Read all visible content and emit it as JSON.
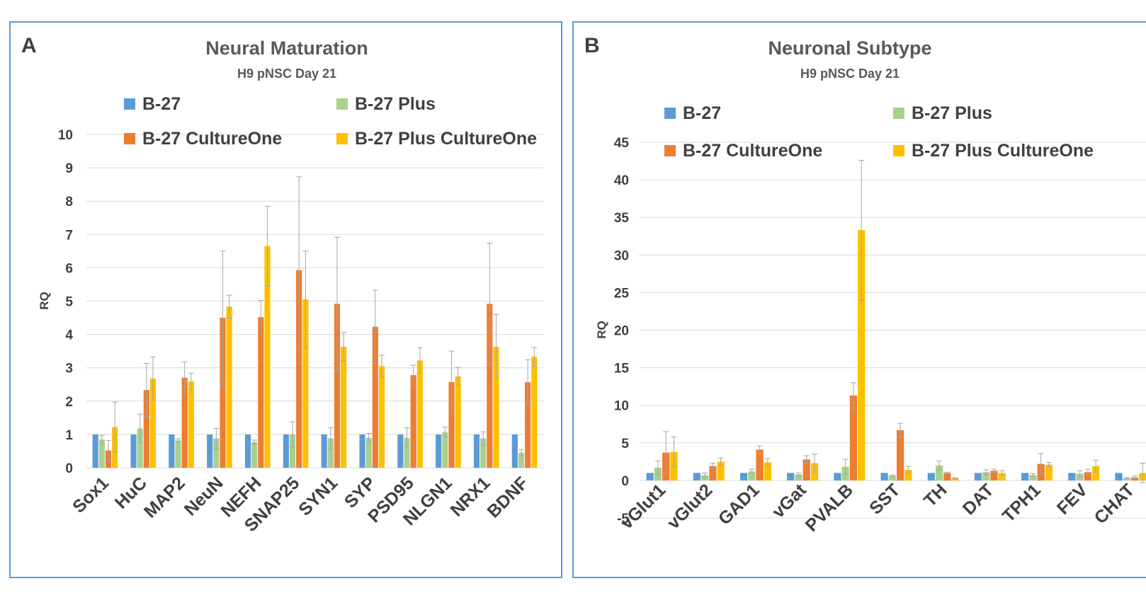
{
  "colors": {
    "b27": "#5b9bd5",
    "b27plus": "#a9d18e",
    "b27c1": "#ed7d31",
    "b27plusc1": "#ffc000",
    "grid": "#d9d9d9",
    "error": "#a6a6a6"
  },
  "chart_data": [
    {
      "panel_letter": "A",
      "type": "bar",
      "title": "Neural Maturation",
      "subtitle": "H9 pNSC Day 21",
      "ylabel": "RQ",
      "xlabel": "",
      "ylim": [
        0,
        10
      ],
      "yticks": [
        0,
        1,
        2,
        3,
        4,
        5,
        6,
        7,
        8,
        9,
        10
      ],
      "grid": true,
      "legend": "top, 2 columns",
      "categories": [
        "Sox1",
        "HuC",
        "MAP2",
        "NeuN",
        "NEFH",
        "SNAP25",
        "SYN1",
        "SYP",
        "PSD95",
        "NLGN1",
        "NRX1",
        "BDNF"
      ],
      "series": [
        {
          "name": "B-27",
          "color_key": "b27",
          "values": [
            1,
            1,
            1,
            1,
            1,
            1,
            1,
            1,
            1,
            1,
            1,
            1
          ],
          "errors": [
            0,
            0,
            0,
            0,
            0,
            0,
            0,
            0,
            0,
            0,
            0,
            0
          ]
        },
        {
          "name": "B-27 Plus",
          "color_key": "b27plus",
          "values": [
            0.85,
            1.18,
            0.82,
            0.88,
            0.77,
            1.0,
            0.88,
            0.9,
            0.9,
            1.07,
            0.88,
            0.45
          ],
          "errors": [
            0.12,
            0.43,
            0.05,
            0.3,
            0.06,
            0.38,
            0.32,
            0.13,
            0.3,
            0.15,
            0.2,
            0.1
          ]
        },
        {
          "name": "B-27 CultureOne",
          "color_key": "b27c1",
          "values": [
            0.52,
            2.33,
            2.7,
            4.5,
            4.52,
            5.93,
            4.92,
            4.23,
            2.78,
            2.57,
            4.92,
            2.57
          ],
          "errors": [
            0.3,
            0.8,
            0.48,
            2.0,
            0.5,
            2.8,
            2.0,
            1.1,
            0.3,
            0.93,
            1.82,
            0.67
          ]
        },
        {
          "name": "B-27 Plus CultureOne",
          "color_key": "b27plusc1",
          "values": [
            1.22,
            2.68,
            2.59,
            4.83,
            6.65,
            5.05,
            3.63,
            3.05,
            3.22,
            2.74,
            3.63,
            3.33
          ],
          "errors": [
            0.75,
            0.65,
            0.25,
            0.35,
            1.2,
            1.45,
            0.43,
            0.33,
            0.38,
            0.27,
            0.97,
            0.28
          ]
        }
      ]
    },
    {
      "panel_letter": "B",
      "type": "bar",
      "title": "Neuronal Subtype",
      "subtitle": "H9 pNSC Day 21",
      "ylabel": "RQ",
      "xlabel": "",
      "ylim": [
        -5,
        45
      ],
      "yticks": [
        -5,
        0,
        5,
        10,
        15,
        20,
        25,
        30,
        35,
        40,
        45
      ],
      "grid": true,
      "legend": "top, 2 columns",
      "categories": [
        "vGlut1",
        "vGlut2",
        "GAD1",
        "vGat",
        "PVALB",
        "SST",
        "TH",
        "DAT",
        "TPH1",
        "FEV",
        "CHAT"
      ],
      "series": [
        {
          "name": "B-27",
          "color_key": "b27",
          "values": [
            1,
            1,
            1,
            1,
            1,
            1,
            1,
            1,
            1,
            1,
            1
          ],
          "errors": [
            0,
            0,
            0,
            0,
            0,
            0,
            0,
            0,
            0,
            0,
            0
          ]
        },
        {
          "name": "B-27 Plus",
          "color_key": "b27plus",
          "values": [
            1.7,
            0.7,
            1.2,
            0.8,
            1.8,
            0.6,
            2.0,
            1.1,
            0.7,
            0.9,
            0.3
          ],
          "errors": [
            0.9,
            0.3,
            0.3,
            0.2,
            1.0,
            0.1,
            0.6,
            0.3,
            0.2,
            0.4,
            0.1
          ]
        },
        {
          "name": "B-27 CultureOne",
          "color_key": "b27c1",
          "values": [
            3.7,
            1.9,
            4.1,
            2.8,
            11.3,
            6.7,
            1.0,
            1.3,
            2.2,
            1.1,
            0.4
          ],
          "errors": [
            2.8,
            0.4,
            0.5,
            0.5,
            1.7,
            0.9,
            0.1,
            0.2,
            1.4,
            0.4,
            0.2
          ]
        },
        {
          "name": "B-27 Plus CultureOne",
          "color_key": "b27plusc1",
          "values": [
            3.8,
            2.5,
            2.4,
            2.3,
            33.3,
            1.4,
            0.3,
            1.0,
            2.1,
            1.9,
            1.0
          ],
          "errors": [
            2.0,
            0.5,
            0.5,
            1.2,
            9.3,
            0.5,
            0.05,
            0.3,
            0.3,
            0.8,
            1.3
          ]
        }
      ]
    }
  ]
}
